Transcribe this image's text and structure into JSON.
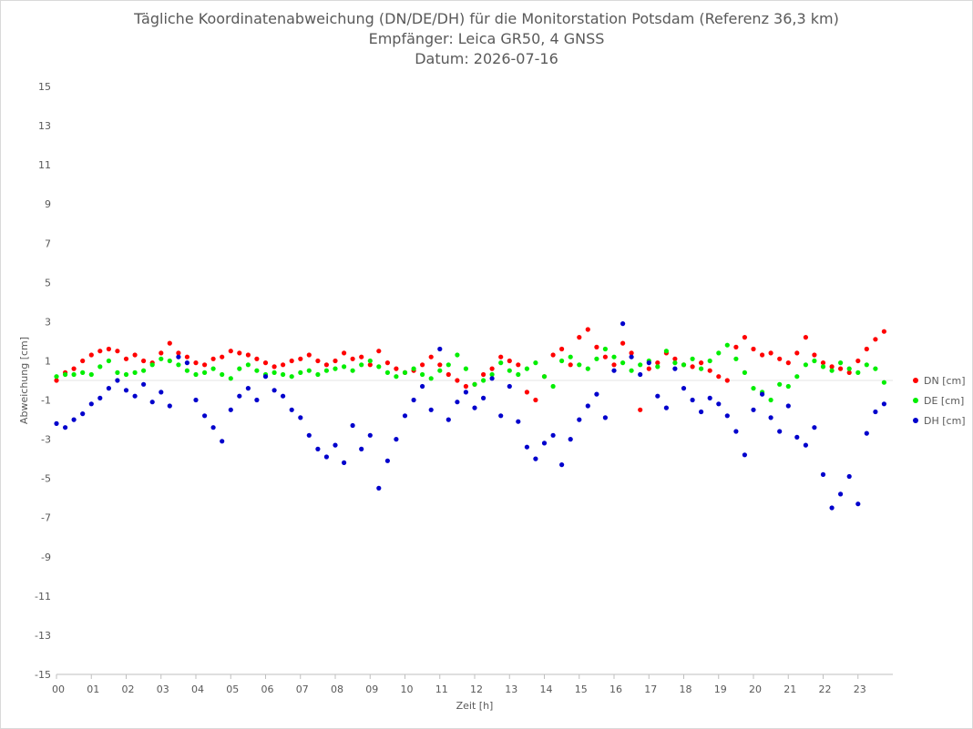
{
  "chart_data": {
    "type": "scatter",
    "title": "Tägliche Koordinatenabweichung (DN/DE/DH) für die Monitorstation Potsdam (Referenz 36,3 km)",
    "subtitle_1": "Empfänger: Leica GR50, 4 GNSS",
    "subtitle_2": "Datum: 2026-07-16",
    "xlabel": "Zeit [h]",
    "ylabel": "Abweichung [cm]",
    "xlim": [
      0,
      24
    ],
    "ylim": [
      -15,
      15
    ],
    "yticks": [
      "15",
      "13",
      "11",
      "9",
      "7",
      "5",
      "3",
      "1",
      "-1",
      "-3",
      "-5",
      "-7",
      "-9",
      "-11",
      "-13",
      "-15"
    ],
    "xticks": [
      "00",
      "01",
      "02",
      "03",
      "04",
      "05",
      "06",
      "07",
      "08",
      "09",
      "10",
      "11",
      "12",
      "13",
      "14",
      "15",
      "16",
      "17",
      "18",
      "19",
      "20",
      "21",
      "22",
      "23"
    ],
    "legend_position": "right",
    "series": [
      {
        "name": "DN [cm]",
        "color": "#ff0000",
        "points": [
          [
            0,
            0.0
          ],
          [
            0.25,
            0.4
          ],
          [
            0.5,
            0.6
          ],
          [
            0.75,
            1.0
          ],
          [
            1,
            1.3
          ],
          [
            1.25,
            1.5
          ],
          [
            1.5,
            1.6
          ],
          [
            1.75,
            1.5
          ],
          [
            2,
            1.1
          ],
          [
            2.25,
            1.3
          ],
          [
            2.5,
            1.0
          ],
          [
            2.75,
            0.9
          ],
          [
            3,
            1.4
          ],
          [
            3.25,
            1.9
          ],
          [
            3.5,
            1.4
          ],
          [
            3.75,
            1.2
          ],
          [
            4,
            0.9
          ],
          [
            4.25,
            0.8
          ],
          [
            4.5,
            1.1
          ],
          [
            4.75,
            1.2
          ],
          [
            5,
            1.5
          ],
          [
            5.25,
            1.4
          ],
          [
            5.5,
            1.3
          ],
          [
            5.75,
            1.1
          ],
          [
            6,
            0.9
          ],
          [
            6.25,
            0.7
          ],
          [
            6.5,
            0.8
          ],
          [
            6.75,
            1.0
          ],
          [
            7,
            1.1
          ],
          [
            7.25,
            1.3
          ],
          [
            7.5,
            1.0
          ],
          [
            7.75,
            0.8
          ],
          [
            8,
            1.0
          ],
          [
            8.25,
            1.4
          ],
          [
            8.5,
            1.1
          ],
          [
            8.75,
            1.2
          ],
          [
            9,
            0.8
          ],
          [
            9.25,
            1.5
          ],
          [
            9.5,
            0.9
          ],
          [
            9.75,
            0.6
          ],
          [
            10,
            0.4
          ],
          [
            10.25,
            0.5
          ],
          [
            10.5,
            0.8
          ],
          [
            10.75,
            1.2
          ],
          [
            11,
            0.8
          ],
          [
            11.25,
            0.3
          ],
          [
            11.5,
            0.0
          ],
          [
            11.75,
            -0.3
          ],
          [
            12,
            -0.2
          ],
          [
            12.25,
            0.3
          ],
          [
            12.5,
            0.6
          ],
          [
            12.75,
            1.2
          ],
          [
            13,
            1.0
          ],
          [
            13.25,
            0.8
          ],
          [
            13.5,
            -0.6
          ],
          [
            13.75,
            -1.0
          ],
          [
            14,
            0.2
          ],
          [
            14.25,
            1.3
          ],
          [
            14.5,
            1.6
          ],
          [
            14.75,
            0.8
          ],
          [
            15,
            2.2
          ],
          [
            15.25,
            2.6
          ],
          [
            15.5,
            1.7
          ],
          [
            15.75,
            1.2
          ],
          [
            16,
            0.8
          ],
          [
            16.25,
            1.9
          ],
          [
            16.5,
            1.4
          ],
          [
            16.75,
            -1.5
          ],
          [
            17,
            0.6
          ],
          [
            17.25,
            0.9
          ],
          [
            17.5,
            1.4
          ],
          [
            17.75,
            1.1
          ],
          [
            18,
            0.8
          ],
          [
            18.25,
            0.7
          ],
          [
            18.5,
            0.9
          ],
          [
            18.75,
            0.5
          ],
          [
            19,
            0.2
          ],
          [
            19.25,
            0.0
          ],
          [
            19.5,
            1.7
          ],
          [
            19.75,
            2.2
          ],
          [
            20,
            1.6
          ],
          [
            20.25,
            1.3
          ],
          [
            20.5,
            1.4
          ],
          [
            20.75,
            1.1
          ],
          [
            21,
            0.9
          ],
          [
            21.25,
            1.4
          ],
          [
            21.5,
            2.2
          ],
          [
            21.75,
            1.3
          ],
          [
            22,
            0.9
          ],
          [
            22.25,
            0.7
          ],
          [
            22.5,
            0.6
          ],
          [
            22.75,
            0.4
          ],
          [
            23,
            1.0
          ],
          [
            23.25,
            1.6
          ],
          [
            23.5,
            2.1
          ],
          [
            23.75,
            2.5
          ]
        ]
      },
      {
        "name": "DE [cm]",
        "color": "#00ee00",
        "points": [
          [
            0,
            0.2
          ],
          [
            0.25,
            0.3
          ],
          [
            0.5,
            0.3
          ],
          [
            0.75,
            0.4
          ],
          [
            1,
            0.3
          ],
          [
            1.25,
            0.7
          ],
          [
            1.5,
            1.0
          ],
          [
            1.75,
            0.4
          ],
          [
            2,
            0.3
          ],
          [
            2.25,
            0.4
          ],
          [
            2.5,
            0.5
          ],
          [
            2.75,
            0.8
          ],
          [
            3,
            1.1
          ],
          [
            3.25,
            1.0
          ],
          [
            3.5,
            0.8
          ],
          [
            3.75,
            0.5
          ],
          [
            4,
            0.3
          ],
          [
            4.25,
            0.4
          ],
          [
            4.5,
            0.6
          ],
          [
            4.75,
            0.3
          ],
          [
            5,
            0.1
          ],
          [
            5.25,
            0.6
          ],
          [
            5.5,
            0.8
          ],
          [
            5.75,
            0.5
          ],
          [
            6,
            0.3
          ],
          [
            6.25,
            0.4
          ],
          [
            6.5,
            0.3
          ],
          [
            6.75,
            0.2
          ],
          [
            7,
            0.4
          ],
          [
            7.25,
            0.5
          ],
          [
            7.5,
            0.3
          ],
          [
            7.75,
            0.5
          ],
          [
            8,
            0.6
          ],
          [
            8.25,
            0.7
          ],
          [
            8.5,
            0.5
          ],
          [
            8.75,
            0.8
          ],
          [
            9,
            1.0
          ],
          [
            9.25,
            0.7
          ],
          [
            9.5,
            0.4
          ],
          [
            9.75,
            0.2
          ],
          [
            10,
            0.4
          ],
          [
            10.25,
            0.6
          ],
          [
            10.5,
            0.3
          ],
          [
            10.75,
            0.1
          ],
          [
            11,
            0.5
          ],
          [
            11.25,
            0.8
          ],
          [
            11.5,
            1.3
          ],
          [
            11.75,
            0.6
          ],
          [
            12,
            -0.2
          ],
          [
            12.25,
            0.0
          ],
          [
            12.5,
            0.3
          ],
          [
            12.75,
            0.9
          ],
          [
            13,
            0.5
          ],
          [
            13.25,
            0.3
          ],
          [
            13.5,
            0.6
          ],
          [
            13.75,
            0.9
          ],
          [
            14,
            0.2
          ],
          [
            14.25,
            -0.3
          ],
          [
            14.5,
            1.0
          ],
          [
            14.75,
            1.2
          ],
          [
            15,
            0.8
          ],
          [
            15.25,
            0.6
          ],
          [
            15.5,
            1.1
          ],
          [
            15.75,
            1.6
          ],
          [
            16,
            1.2
          ],
          [
            16.25,
            0.9
          ],
          [
            16.5,
            0.5
          ],
          [
            16.75,
            0.8
          ],
          [
            17,
            1.0
          ],
          [
            17.25,
            0.7
          ],
          [
            17.5,
            1.5
          ],
          [
            17.75,
            0.9
          ],
          [
            18,
            0.8
          ],
          [
            18.25,
            1.1
          ],
          [
            18.5,
            0.6
          ],
          [
            18.75,
            1.0
          ],
          [
            19,
            1.4
          ],
          [
            19.25,
            1.8
          ],
          [
            19.5,
            1.1
          ],
          [
            19.75,
            0.4
          ],
          [
            20,
            -0.4
          ],
          [
            20.25,
            -0.6
          ],
          [
            20.5,
            -1.0
          ],
          [
            20.75,
            -0.2
          ],
          [
            21,
            -0.3
          ],
          [
            21.25,
            0.2
          ],
          [
            21.5,
            0.8
          ],
          [
            21.75,
            1.0
          ],
          [
            22,
            0.7
          ],
          [
            22.25,
            0.5
          ],
          [
            22.5,
            0.9
          ],
          [
            22.75,
            0.6
          ],
          [
            23,
            0.4
          ],
          [
            23.25,
            0.8
          ],
          [
            23.5,
            0.6
          ],
          [
            23.75,
            -0.1
          ]
        ]
      },
      {
        "name": "DH [cm]",
        "color": "#0000cc",
        "points": [
          [
            0,
            -2.2
          ],
          [
            0.25,
            -2.4
          ],
          [
            0.5,
            -2.0
          ],
          [
            0.75,
            -1.7
          ],
          [
            1,
            -1.2
          ],
          [
            1.25,
            -0.9
          ],
          [
            1.5,
            -0.4
          ],
          [
            1.75,
            0.0
          ],
          [
            2,
            -0.5
          ],
          [
            2.25,
            -0.8
          ],
          [
            2.5,
            -0.2
          ],
          [
            2.75,
            -1.1
          ],
          [
            3,
            -0.6
          ],
          [
            3.25,
            -1.3
          ],
          [
            3.5,
            1.2
          ],
          [
            3.75,
            0.9
          ],
          [
            4,
            -1.0
          ],
          [
            4.25,
            -1.8
          ],
          [
            4.5,
            -2.4
          ],
          [
            4.75,
            -3.1
          ],
          [
            5,
            -1.5
          ],
          [
            5.25,
            -0.8
          ],
          [
            5.5,
            -0.4
          ],
          [
            5.75,
            -1.0
          ],
          [
            6,
            0.2
          ],
          [
            6.25,
            -0.5
          ],
          [
            6.5,
            -0.8
          ],
          [
            6.75,
            -1.5
          ],
          [
            7,
            -1.9
          ],
          [
            7.25,
            -2.8
          ],
          [
            7.5,
            -3.5
          ],
          [
            7.75,
            -3.9
          ],
          [
            8,
            -3.3
          ],
          [
            8.25,
            -4.2
          ],
          [
            8.5,
            -2.3
          ],
          [
            8.75,
            -3.5
          ],
          [
            9,
            -2.8
          ],
          [
            9.25,
            -5.5
          ],
          [
            9.5,
            -4.1
          ],
          [
            9.75,
            -3.0
          ],
          [
            10,
            -1.8
          ],
          [
            10.25,
            -1.0
          ],
          [
            10.5,
            -0.3
          ],
          [
            10.75,
            -1.5
          ],
          [
            11,
            1.6
          ],
          [
            11.25,
            -2.0
          ],
          [
            11.5,
            -1.1
          ],
          [
            11.75,
            -0.6
          ],
          [
            12,
            -1.4
          ],
          [
            12.25,
            -0.9
          ],
          [
            12.5,
            0.1
          ],
          [
            12.75,
            -1.8
          ],
          [
            13,
            -0.3
          ],
          [
            13.25,
            -2.1
          ],
          [
            13.5,
            -3.4
          ],
          [
            13.75,
            -4.0
          ],
          [
            14,
            -3.2
          ],
          [
            14.25,
            -2.8
          ],
          [
            14.5,
            -4.3
          ],
          [
            14.75,
            -3.0
          ],
          [
            15,
            -2.0
          ],
          [
            15.25,
            -1.3
          ],
          [
            15.5,
            -0.7
          ],
          [
            15.75,
            -1.9
          ],
          [
            16,
            0.5
          ],
          [
            16.25,
            2.9
          ],
          [
            16.5,
            1.2
          ],
          [
            16.75,
            0.3
          ],
          [
            17,
            0.9
          ],
          [
            17.25,
            -0.8
          ],
          [
            17.5,
            -1.4
          ],
          [
            17.75,
            0.6
          ],
          [
            18,
            -0.4
          ],
          [
            18.25,
            -1.0
          ],
          [
            18.5,
            -1.6
          ],
          [
            18.75,
            -0.9
          ],
          [
            19,
            -1.2
          ],
          [
            19.25,
            -1.8
          ],
          [
            19.5,
            -2.6
          ],
          [
            19.75,
            -3.8
          ],
          [
            20,
            -1.5
          ],
          [
            20.25,
            -0.7
          ],
          [
            20.5,
            -1.9
          ],
          [
            20.75,
            -2.6
          ],
          [
            21,
            -1.3
          ],
          [
            21.25,
            -2.9
          ],
          [
            21.5,
            -3.3
          ],
          [
            21.75,
            -2.4
          ],
          [
            22,
            -4.8
          ],
          [
            22.25,
            -6.5
          ],
          [
            22.5,
            -5.8
          ],
          [
            22.75,
            -4.9
          ],
          [
            23,
            -6.3
          ],
          [
            23.25,
            -2.7
          ],
          [
            23.5,
            -1.6
          ],
          [
            23.75,
            -1.2
          ]
        ]
      }
    ]
  }
}
